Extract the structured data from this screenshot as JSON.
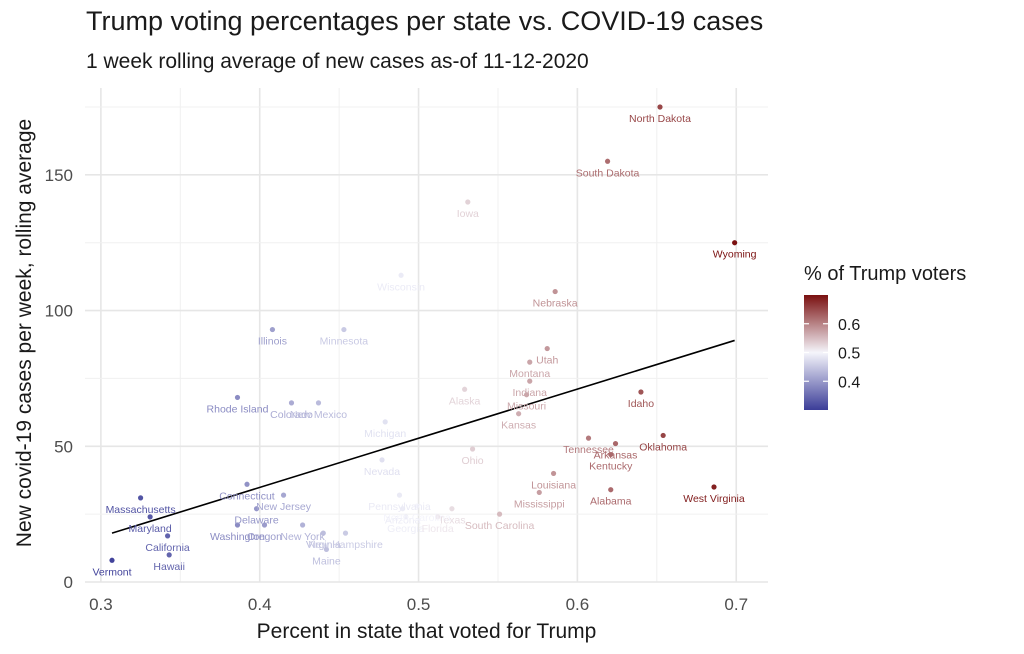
{
  "title": "Trump voting percentages per state vs. COVID-19 cases",
  "subtitle": "1 week rolling average of new cases as-of 11-12-2020",
  "chart_data": {
    "type": "scatter",
    "title": "Trump voting percentages per state vs. COVID-19 cases",
    "subtitle": "1 week rolling average of new cases as-of 11-12-2020",
    "xlabel": "Percent in state that voted for Trump",
    "ylabel": "New covid-19 cases per week, rolling average",
    "xlim": [
      0.29,
      0.72
    ],
    "ylim": [
      0,
      182
    ],
    "x_ticks": [
      "0.3",
      "0.4",
      "0.5",
      "0.6",
      "0.7"
    ],
    "y_ticks": [
      "0",
      "50",
      "100",
      "150"
    ],
    "grid": true,
    "legend": {
      "title": "% of Trump voters",
      "position": "right",
      "ticks": [
        "0.4",
        "0.5",
        "0.6"
      ],
      "scale": [
        0.3,
        0.7
      ],
      "colors": {
        "low": "#3b3d98",
        "mid": "#f5f5fb",
        "high": "#7a1010"
      }
    },
    "trend_line": {
      "x": [
        0.307,
        0.699
      ],
      "y": [
        18,
        89
      ]
    },
    "points": [
      {
        "state": "North Dakota",
        "x": 0.652,
        "y": 175
      },
      {
        "state": "South Dakota",
        "x": 0.619,
        "y": 155
      },
      {
        "state": "Iowa",
        "x": 0.531,
        "y": 140
      },
      {
        "state": "Wyoming",
        "x": 0.699,
        "y": 125
      },
      {
        "state": "Wisconsin",
        "x": 0.489,
        "y": 113
      },
      {
        "state": "Nebraska",
        "x": 0.586,
        "y": 107
      },
      {
        "state": "Illinois",
        "x": 0.408,
        "y": 93
      },
      {
        "state": "Minnesota",
        "x": 0.453,
        "y": 93
      },
      {
        "state": "Utah",
        "x": 0.581,
        "y": 86
      },
      {
        "state": "Montana",
        "x": 0.57,
        "y": 81
      },
      {
        "state": "Indiana",
        "x": 0.57,
        "y": 74
      },
      {
        "state": "Alaska",
        "x": 0.529,
        "y": 71
      },
      {
        "state": "Idaho",
        "x": 0.64,
        "y": 70
      },
      {
        "state": "Rhode Island",
        "x": 0.386,
        "y": 68
      },
      {
        "state": "Missouri",
        "x": 0.568,
        "y": 69
      },
      {
        "state": "Colorado",
        "x": 0.42,
        "y": 66
      },
      {
        "state": "New Mexico",
        "x": 0.437,
        "y": 66
      },
      {
        "state": "Kansas",
        "x": 0.563,
        "y": 62
      },
      {
        "state": "Michigan",
        "x": 0.479,
        "y": 59
      },
      {
        "state": "Tennessee",
        "x": 0.607,
        "y": 53
      },
      {
        "state": "Oklahoma",
        "x": 0.654,
        "y": 54
      },
      {
        "state": "Arkansas",
        "x": 0.624,
        "y": 51
      },
      {
        "state": "Ohio",
        "x": 0.534,
        "y": 49
      },
      {
        "state": "Nevada",
        "x": 0.477,
        "y": 45
      },
      {
        "state": "Kentucky",
        "x": 0.621,
        "y": 47
      },
      {
        "state": "Louisiana",
        "x": 0.585,
        "y": 40
      },
      {
        "state": "Connecticut",
        "x": 0.392,
        "y": 36
      },
      {
        "state": "New Jersey",
        "x": 0.415,
        "y": 32
      },
      {
        "state": "Pennsylvania",
        "x": 0.488,
        "y": 32
      },
      {
        "state": "Texas",
        "x": 0.521,
        "y": 27
      },
      {
        "state": "Mississippi",
        "x": 0.576,
        "y": 33
      },
      {
        "state": "Alabama",
        "x": 0.621,
        "y": 34
      },
      {
        "state": "West Virginia",
        "x": 0.686,
        "y": 35
      },
      {
        "state": "Massachusetts",
        "x": 0.325,
        "y": 31
      },
      {
        "state": "Delaware",
        "x": 0.398,
        "y": 27
      },
      {
        "state": "Arizona",
        "x": 0.49,
        "y": 27
      },
      {
        "state": "North Carolina",
        "x": 0.499,
        "y": 28
      },
      {
        "state": "Maryland",
        "x": 0.331,
        "y": 24
      },
      {
        "state": "Washington",
        "x": 0.386,
        "y": 21
      },
      {
        "state": "Oregon",
        "x": 0.403,
        "y": 21
      },
      {
        "state": "New York",
        "x": 0.427,
        "y": 21
      },
      {
        "state": "Georgia",
        "x": 0.492,
        "y": 24
      },
      {
        "state": "Florida",
        "x": 0.512,
        "y": 24
      },
      {
        "state": "South Carolina",
        "x": 0.551,
        "y": 25
      },
      {
        "state": "Virginia",
        "x": 0.44,
        "y": 18
      },
      {
        "state": "New Hampshire",
        "x": 0.454,
        "y": 18
      },
      {
        "state": "California",
        "x": 0.342,
        "y": 17
      },
      {
        "state": "Maine",
        "x": 0.442,
        "y": 12
      },
      {
        "state": "Hawaii",
        "x": 0.343,
        "y": 10
      },
      {
        "state": "Vermont",
        "x": 0.307,
        "y": 8
      }
    ]
  }
}
